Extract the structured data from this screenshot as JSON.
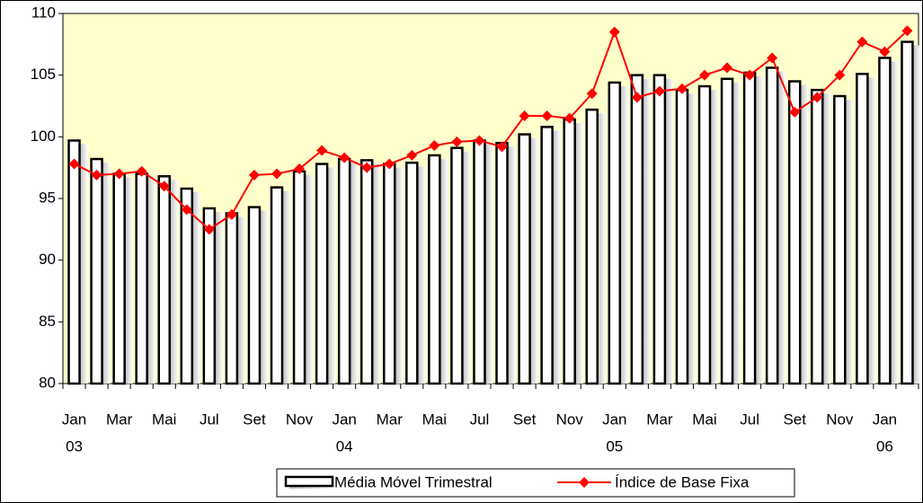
{
  "chart_data": {
    "type": "bar-line",
    "categories": [
      "Jan",
      null,
      "Mar",
      null,
      "Mai",
      null,
      "Jul",
      null,
      "Set",
      null,
      "Nov",
      null,
      "Jan",
      null,
      "Mar",
      null,
      "Mai",
      null,
      "Jul",
      null,
      "Set",
      null,
      "Nov",
      null,
      "Jan",
      null,
      "Mar",
      null,
      "Mai",
      null,
      "Jul",
      null,
      "Set",
      null,
      "Nov",
      null,
      "Jan",
      null
    ],
    "years": [
      "03",
      null,
      null,
      null,
      null,
      null,
      null,
      null,
      null,
      null,
      null,
      null,
      "04",
      null,
      null,
      null,
      null,
      null,
      null,
      null,
      null,
      null,
      null,
      null,
      "05",
      null,
      null,
      null,
      null,
      null,
      null,
      null,
      null,
      null,
      null,
      null,
      "06",
      null
    ],
    "series": [
      {
        "name": "Média Móvel Trimestral",
        "type": "bar",
        "color": "#ffffff",
        "values": [
          99.7,
          98.2,
          97.0,
          97.0,
          96.8,
          95.8,
          94.2,
          93.8,
          94.3,
          95.9,
          97.2,
          97.8,
          98.2,
          98.1,
          97.8,
          97.9,
          98.5,
          99.1,
          99.7,
          99.5,
          100.2,
          100.8,
          101.4,
          102.2,
          104.4,
          105.0,
          105.0,
          103.8,
          104.1,
          104.7,
          105.2,
          105.6,
          104.5,
          103.8,
          103.3,
          105.1,
          106.4,
          107.7
        ]
      },
      {
        "name": "Índice de Base Fixa",
        "type": "line",
        "color": "#ff0000",
        "values": [
          97.8,
          96.9,
          97.0,
          97.2,
          96.0,
          94.1,
          92.5,
          93.7,
          96.9,
          97.0,
          97.4,
          98.9,
          98.3,
          97.5,
          97.8,
          98.5,
          99.3,
          99.6,
          99.7,
          99.2,
          101.7,
          101.7,
          101.5,
          103.5,
          108.5,
          103.2,
          103.7,
          103.9,
          105.0,
          105.6,
          105.0,
          106.4,
          102.0,
          103.2,
          105.0,
          107.7,
          106.9,
          108.6
        ]
      }
    ],
    "ylim": [
      80,
      110
    ],
    "yticks": [
      80,
      85,
      90,
      95,
      100,
      105,
      110
    ],
    "plot_background": "#ffffcc",
    "grid": false,
    "legend": "bottom"
  }
}
